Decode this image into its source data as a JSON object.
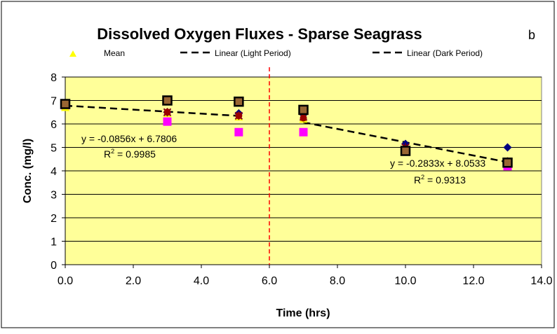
{
  "chart_data": {
    "type": "scatter",
    "title": "Dissolved Oxygen Fluxes - Sparse Seagrass",
    "panel_label": "b",
    "xlabel": "Time (hrs)",
    "ylabel": "Conc. (mg/l)",
    "xlim": [
      0,
      14
    ],
    "ylim": [
      0,
      8
    ],
    "x_ticks": [
      "0.0",
      "2.0",
      "4.0",
      "6.0",
      "8.0",
      "10.0",
      "12.0",
      "14.0"
    ],
    "y_ticks": [
      "0",
      "1",
      "2",
      "3",
      "4",
      "5",
      "6",
      "7",
      "8"
    ],
    "grid": "horizontal",
    "plot_background": "#ffff99",
    "legend": [
      {
        "label": "Mean",
        "marker": "triangle",
        "color": "#ffff00"
      },
      {
        "label": "Linear (Light Period)",
        "style": "dashed",
        "color": "#000000"
      },
      {
        "label": "Linear (Dark Period)",
        "style": "dashed",
        "color": "#000000"
      }
    ],
    "series": [
      {
        "marker": "diamond",
        "color": "#000080",
        "points": [
          [
            0,
            6.85
          ],
          [
            3,
            6.5
          ],
          [
            5.1,
            6.45
          ],
          [
            7,
            6.4
          ],
          [
            10,
            5.15
          ],
          [
            13,
            5.0
          ]
        ]
      },
      {
        "marker": "square",
        "color": "#ff00ff",
        "points": [
          [
            0,
            6.8
          ],
          [
            3,
            6.1
          ],
          [
            5.1,
            5.65
          ],
          [
            7,
            5.65
          ],
          [
            10,
            4.85
          ],
          [
            13,
            4.2
          ]
        ]
      },
      {
        "marker": "triangle",
        "color": "#ffff00",
        "points": [
          [
            0,
            6.7
          ],
          [
            3,
            6.45
          ],
          [
            5.1,
            6.3
          ],
          [
            7,
            6.2
          ],
          [
            10,
            4.95
          ],
          [
            13,
            4.3
          ]
        ]
      },
      {
        "marker": "x",
        "color": "#800080",
        "points": [
          [
            0,
            6.85
          ],
          [
            3,
            6.5
          ],
          [
            5.1,
            6.35
          ],
          [
            7,
            6.3
          ],
          [
            10,
            5.0
          ],
          [
            13,
            4.4
          ]
        ]
      },
      {
        "marker": "star",
        "color": "#800000",
        "points": [
          [
            0,
            6.85
          ],
          [
            3,
            6.5
          ],
          [
            5.1,
            6.35
          ],
          [
            7,
            6.3
          ],
          [
            10,
            5.0
          ],
          [
            13,
            4.4
          ]
        ]
      },
      {
        "marker": "circle",
        "color": "#990000",
        "points": [
          [
            0,
            6.85
          ],
          [
            3,
            6.5
          ],
          [
            5.1,
            6.35
          ],
          [
            7,
            6.25
          ],
          [
            10,
            4.95
          ],
          [
            13,
            4.4
          ]
        ]
      },
      {
        "marker": "square-outline",
        "color": "#000000",
        "fill": "#996633",
        "points": [
          [
            0,
            6.85
          ],
          [
            3,
            7.0
          ],
          [
            5.1,
            6.95
          ],
          [
            7,
            6.6
          ],
          [
            10,
            4.85
          ],
          [
            13,
            4.35
          ]
        ]
      }
    ],
    "trendlines": [
      {
        "name": "Linear (Light Period)",
        "slope": -0.0856,
        "intercept": 6.7806,
        "x_range": [
          0,
          5.1
        ],
        "equation": "y = -0.0856x + 6.7806",
        "r2_label": "R",
        "r2_value": " = 0.9985"
      },
      {
        "name": "Linear (Dark Period)",
        "slope": -0.2833,
        "intercept": 8.0533,
        "x_range": [
          7,
          13
        ],
        "equation": "y = -0.2833x + 8.0533",
        "r2_label": "R",
        "r2_value": " = 0.9313"
      }
    ],
    "reference_line": {
      "x": 6.0,
      "color": "#ff0000",
      "style": "dashed"
    }
  }
}
